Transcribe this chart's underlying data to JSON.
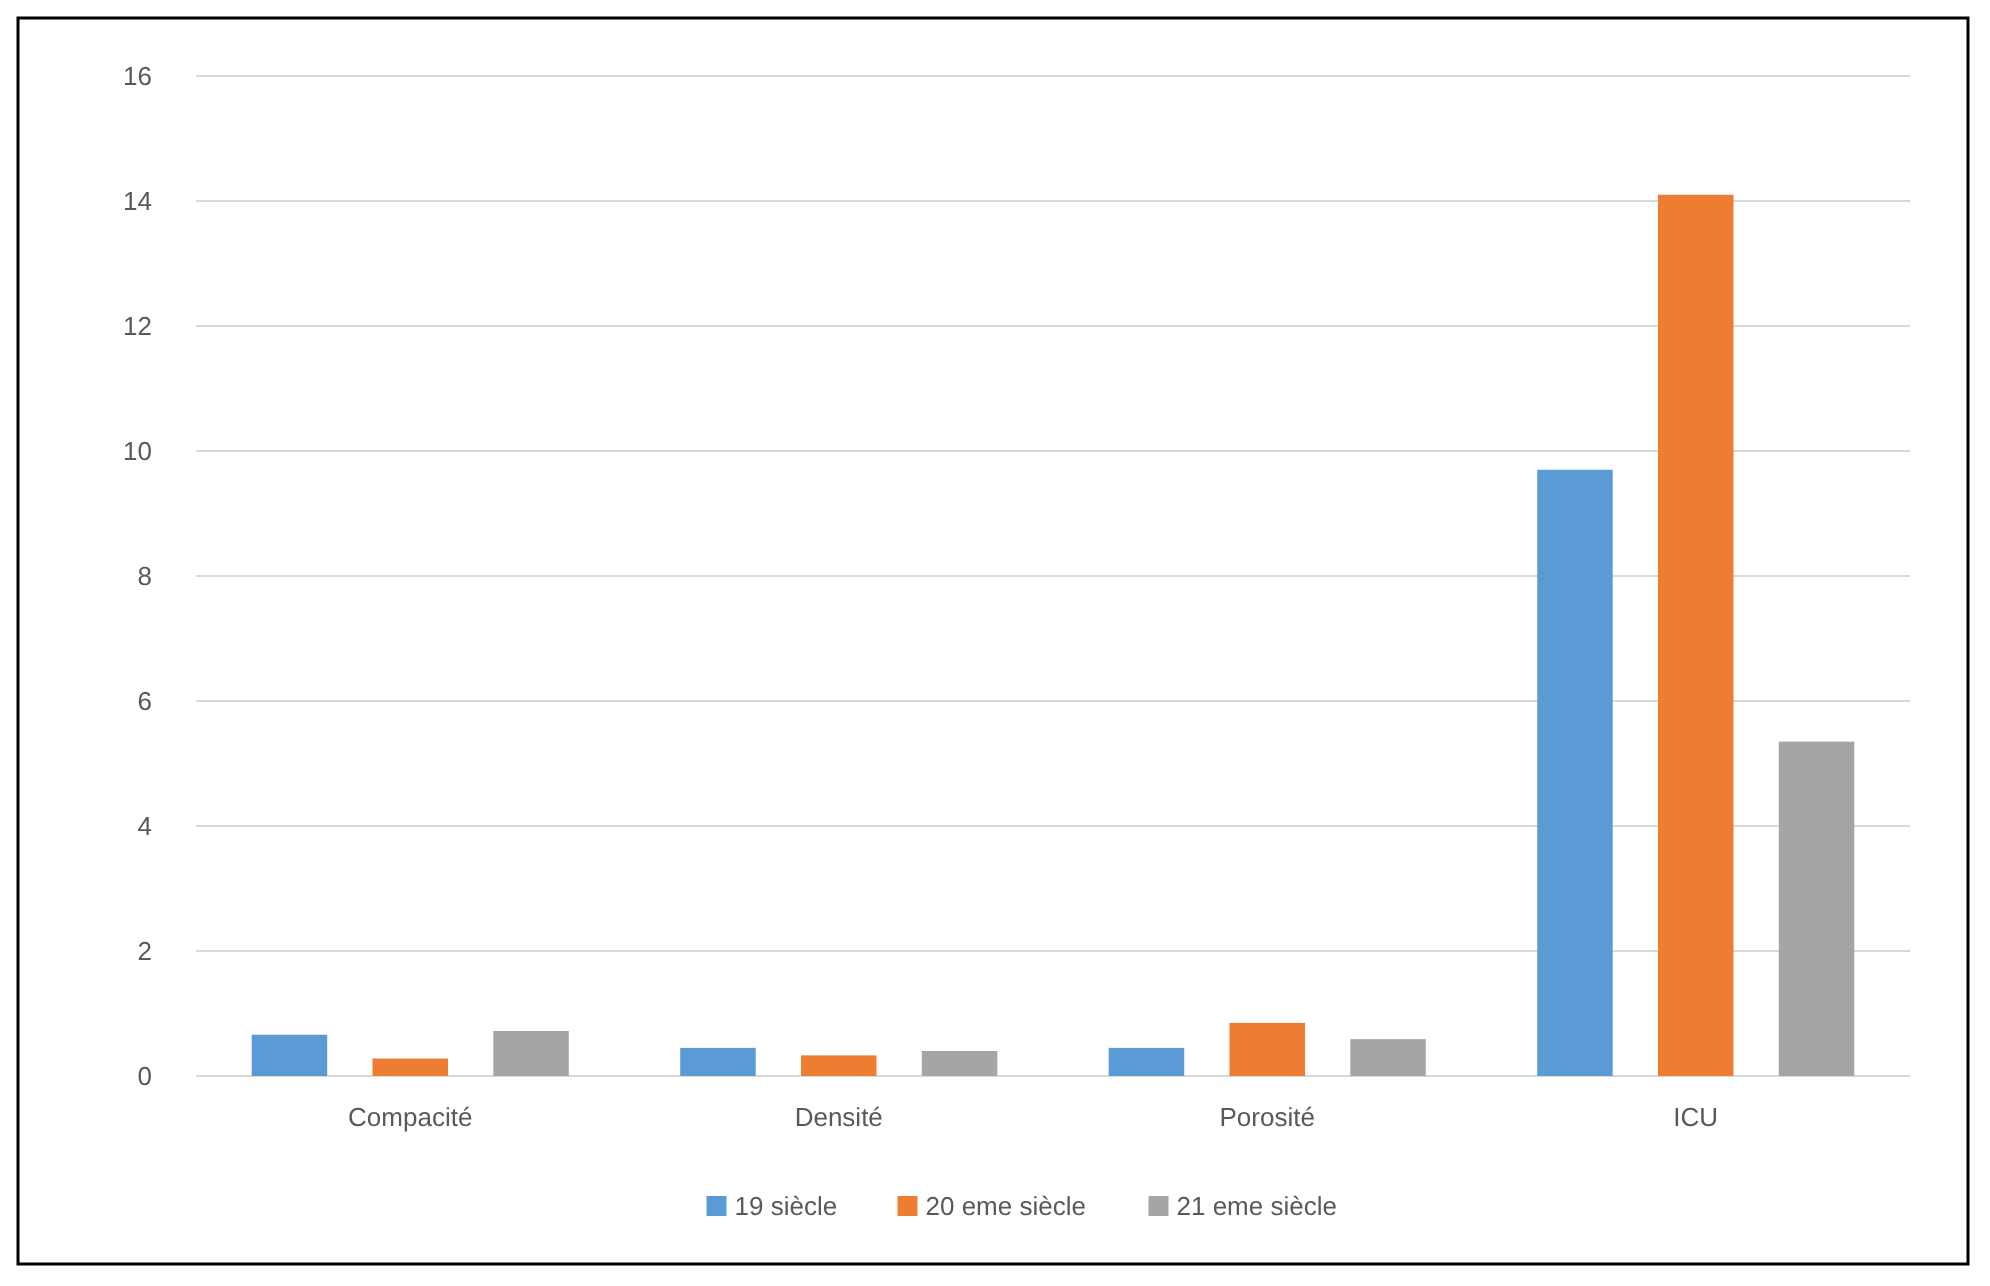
{
  "chart_data": {
    "type": "bar",
    "categories": [
      "Compacité",
      "Densité",
      "Porosité",
      "ICU"
    ],
    "series": [
      {
        "name": "19 siècle",
        "color": "#5b9bd5",
        "values": [
          0.66,
          0.45,
          0.45,
          9.7
        ]
      },
      {
        "name": "20 eme siècle",
        "color": "#ed7d31",
        "values": [
          0.28,
          0.33,
          0.85,
          14.1
        ]
      },
      {
        "name": "21 eme siècle",
        "color": "#a5a5a5",
        "values": [
          0.72,
          0.4,
          0.59,
          5.35
        ]
      }
    ],
    "ylim": [
      0,
      16
    ],
    "yticks": [
      0,
      2,
      4,
      6,
      8,
      10,
      12,
      14,
      16
    ],
    "grid": "y",
    "legend": "bottom"
  }
}
